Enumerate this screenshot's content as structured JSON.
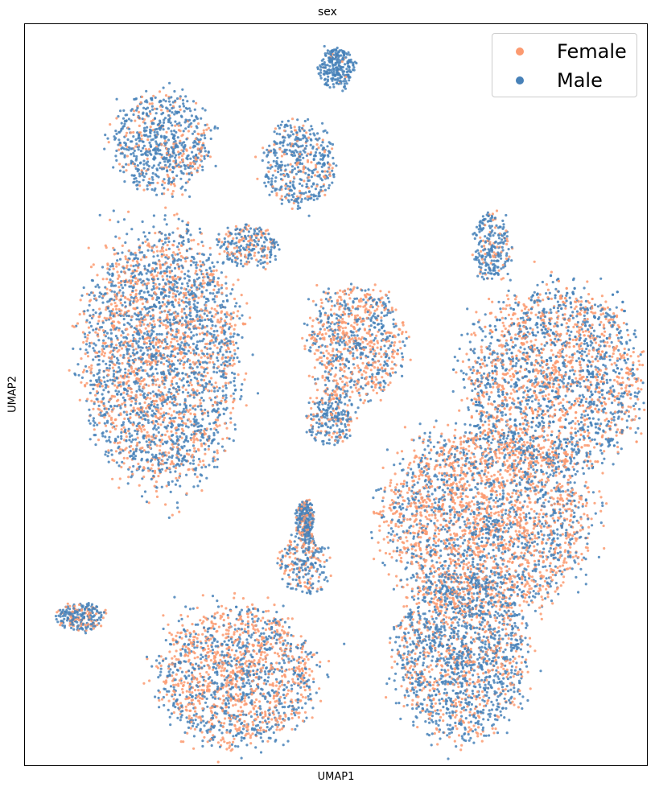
{
  "chart_data": {
    "type": "scatter",
    "title": "sex",
    "xlabel": "UMAP1",
    "ylabel": "UMAP2",
    "grid": false,
    "axis_ticks": false,
    "legend_placement": "top-right",
    "series": [
      {
        "name": "Female",
        "color": "#fc9a70"
      },
      {
        "name": "Male",
        "color": "#4781b8"
      }
    ],
    "clusters": [
      {
        "x": 0.22,
        "y": 0.84,
        "rx": 0.08,
        "ry": 0.07,
        "mix": 0.25
      },
      {
        "x": 0.44,
        "y": 0.81,
        "rx": 0.06,
        "ry": 0.06,
        "mix": 0.2
      },
      {
        "x": 0.5,
        "y": 0.94,
        "rx": 0.03,
        "ry": 0.03,
        "mix": 0.05
      },
      {
        "x": 0.36,
        "y": 0.7,
        "rx": 0.05,
        "ry": 0.03,
        "mix": 0.35
      },
      {
        "x": 0.53,
        "y": 0.57,
        "rx": 0.08,
        "ry": 0.08,
        "mix": 0.55
      },
      {
        "x": 0.75,
        "y": 0.7,
        "rx": 0.03,
        "ry": 0.05,
        "mix": 0.2
      },
      {
        "x": 0.22,
        "y": 0.55,
        "rx": 0.13,
        "ry": 0.18,
        "mix": 0.4
      },
      {
        "x": 0.49,
        "y": 0.47,
        "rx": 0.04,
        "ry": 0.04,
        "mix": 0.3
      },
      {
        "x": 0.85,
        "y": 0.52,
        "rx": 0.15,
        "ry": 0.13,
        "mix": 0.45
      },
      {
        "x": 0.74,
        "y": 0.33,
        "rx": 0.17,
        "ry": 0.13,
        "mix": 0.55
      },
      {
        "x": 0.45,
        "y": 0.27,
        "rx": 0.04,
        "ry": 0.04,
        "mix": 0.35
      },
      {
        "x": 0.09,
        "y": 0.2,
        "rx": 0.04,
        "ry": 0.02,
        "mix": 0.3
      },
      {
        "x": 0.45,
        "y": 0.33,
        "rx": 0.015,
        "ry": 0.03,
        "mix": 0.3
      },
      {
        "x": 0.34,
        "y": 0.12,
        "rx": 0.13,
        "ry": 0.1,
        "mix": 0.5
      },
      {
        "x": 0.7,
        "y": 0.15,
        "rx": 0.11,
        "ry": 0.12,
        "mix": 0.35
      }
    ]
  }
}
